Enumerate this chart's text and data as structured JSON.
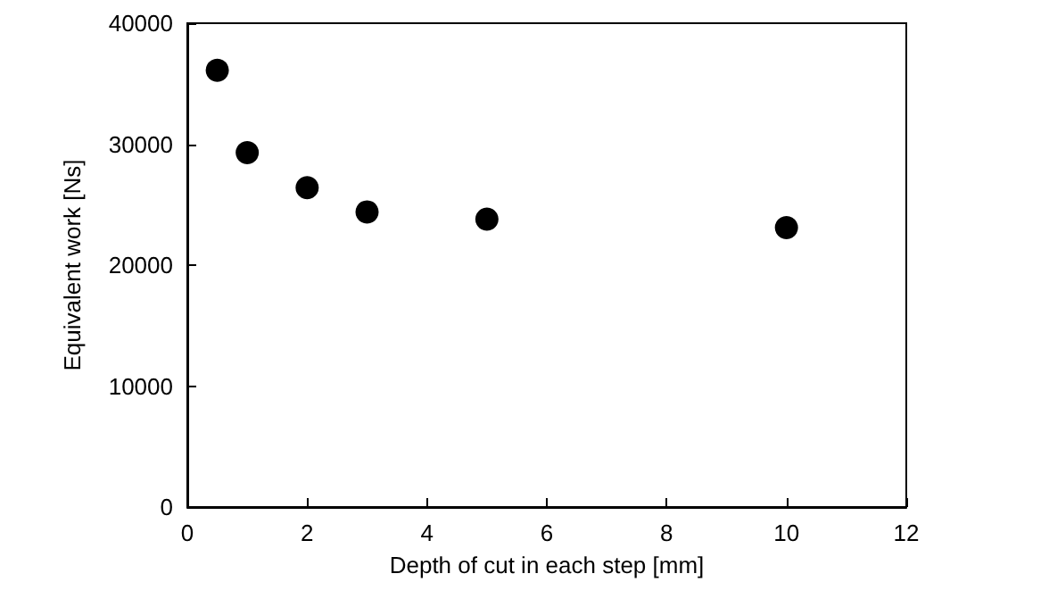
{
  "chart_data": {
    "type": "scatter",
    "xlabel": "Depth of cut in each step [mm]",
    "ylabel": "Equivalent work [Ns]",
    "x": [
      0.5,
      1,
      2,
      3,
      5,
      10
    ],
    "series": [
      {
        "color": "#000000",
        "values": [
          36100,
          29300,
          26400,
          24400,
          23800,
          23100
        ]
      }
    ],
    "xlim": [
      0,
      12
    ],
    "xticks": [
      0,
      2,
      4,
      6,
      8,
      10,
      12
    ],
    "ylim": [
      0,
      40000
    ],
    "yticks": [
      0,
      10000,
      20000,
      30000,
      40000
    ],
    "grid": false,
    "marker": "circle"
  }
}
